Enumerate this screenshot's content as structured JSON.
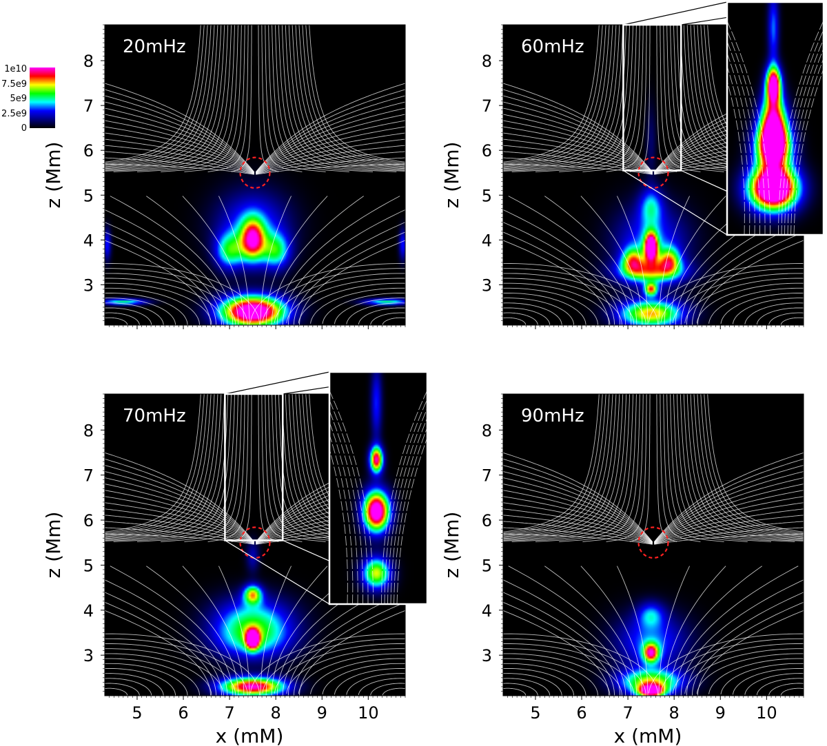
{
  "figure": {
    "colorbar": {
      "ticks": [
        "1e10",
        "7.5e9",
        "5e9",
        "2.5e9",
        "0"
      ],
      "colors": [
        "#000000",
        "#000080",
        "#0000ff",
        "#00ffff",
        "#00ff00",
        "#ffff00",
        "#ff0000",
        "#ff00ff"
      ]
    },
    "xlabel": "x (mM)",
    "ylabel": "z (Mm)",
    "xticks": [
      "5",
      "6",
      "7",
      "8",
      "9",
      "10"
    ],
    "yticks": [
      "3",
      "4",
      "5",
      "6",
      "7",
      "8"
    ]
  },
  "chart_data": [
    {
      "type": "heatmap",
      "title": "20mHz",
      "xlabel": "",
      "ylabel": "z (Mm)",
      "xlim": [
        4.3,
        10.8
      ],
      "ylim": [
        2.1,
        8.8
      ],
      "null_point": {
        "x": 7.55,
        "z": 5.5
      },
      "inset": false,
      "blobs": [
        {
          "x": 7.5,
          "z": 4.0,
          "sx": 0.18,
          "sz": 0.32,
          "a": 0.75
        },
        {
          "x": 7.5,
          "z": 4.3,
          "sx": 0.55,
          "sz": 0.55,
          "a": 0.35
        },
        {
          "x": 7.0,
          "z": 3.75,
          "sx": 0.22,
          "sz": 0.28,
          "a": 0.45
        },
        {
          "x": 8.0,
          "z": 3.75,
          "sx": 0.22,
          "sz": 0.28,
          "a": 0.45
        },
        {
          "x": 7.5,
          "z": 2.4,
          "sx": 0.5,
          "sz": 0.25,
          "a": 1.2
        },
        {
          "x": 4.7,
          "z": 2.62,
          "sx": 0.35,
          "sz": 0.05,
          "a": 0.5
        },
        {
          "x": 10.4,
          "z": 2.62,
          "sx": 0.35,
          "sz": 0.05,
          "a": 0.5
        },
        {
          "x": 4.35,
          "z": 3.9,
          "sx": 0.06,
          "sz": 0.25,
          "a": 0.3
        },
        {
          "x": 10.75,
          "z": 3.9,
          "sx": 0.06,
          "sz": 0.25,
          "a": 0.3
        }
      ]
    },
    {
      "type": "heatmap",
      "title": "60mHz",
      "xlabel": "",
      "ylabel": "z (Mm)",
      "xlim": [
        4.3,
        10.8
      ],
      "ylim": [
        2.1,
        8.8
      ],
      "null_point": {
        "x": 7.55,
        "z": 5.5
      },
      "inset": true,
      "blobs": [
        {
          "x": 7.5,
          "z": 3.85,
          "sx": 0.1,
          "sz": 0.22,
          "a": 1.0
        },
        {
          "x": 7.5,
          "z": 3.9,
          "sx": 0.55,
          "sz": 0.6,
          "a": 0.35
        },
        {
          "x": 7.1,
          "z": 3.55,
          "sx": 0.16,
          "sz": 0.2,
          "a": 0.5
        },
        {
          "x": 7.9,
          "z": 3.55,
          "sx": 0.16,
          "sz": 0.2,
          "a": 0.5
        },
        {
          "x": 7.5,
          "z": 3.3,
          "sx": 0.5,
          "sz": 0.18,
          "a": 0.55
        },
        {
          "x": 7.5,
          "z": 2.9,
          "sx": 0.1,
          "sz": 0.1,
          "a": 0.7
        },
        {
          "x": 7.5,
          "z": 2.35,
          "sx": 0.5,
          "sz": 0.22,
          "a": 0.75
        },
        {
          "x": 7.5,
          "z": 4.75,
          "sx": 0.18,
          "sz": 0.3,
          "a": 0.35
        },
        {
          "x": 7.5,
          "z": 6.2,
          "sx": 0.08,
          "sz": 0.6,
          "a": 0.12
        }
      ],
      "inset_blobs": [
        {
          "x": 7.5,
          "z": 7.2,
          "sx": 0.07,
          "sz": 0.25,
          "a": 1.1
        },
        {
          "x": 7.5,
          "z": 6.5,
          "sx": 0.12,
          "sz": 0.35,
          "a": 0.9
        },
        {
          "x": 7.5,
          "z": 6.0,
          "sx": 0.16,
          "sz": 0.3,
          "a": 1.1
        },
        {
          "x": 7.5,
          "z": 5.2,
          "sx": 0.22,
          "sz": 0.3,
          "a": 1.4
        },
        {
          "x": 7.5,
          "z": 8.3,
          "sx": 0.05,
          "sz": 0.5,
          "a": 0.35
        }
      ]
    },
    {
      "type": "heatmap",
      "title": "70mHz",
      "xlabel": "x (mM)",
      "ylabel": "z (Mm)",
      "xlim": [
        4.3,
        10.8
      ],
      "ylim": [
        2.1,
        8.8
      ],
      "null_point": {
        "x": 7.55,
        "z": 5.5
      },
      "inset": true,
      "blobs": [
        {
          "x": 7.5,
          "z": 4.35,
          "sx": 0.14,
          "sz": 0.15,
          "a": 0.65
        },
        {
          "x": 7.5,
          "z": 3.35,
          "sx": 0.1,
          "sz": 0.15,
          "a": 0.95
        },
        {
          "x": 7.5,
          "z": 3.4,
          "sx": 0.6,
          "sz": 0.35,
          "a": 0.5
        },
        {
          "x": 7.5,
          "z": 3.9,
          "sx": 0.6,
          "sz": 0.35,
          "a": 0.3
        },
        {
          "x": 7.5,
          "z": 2.3,
          "sx": 0.5,
          "sz": 0.15,
          "a": 1.0
        },
        {
          "x": 7.5,
          "z": 5.2,
          "sx": 0.1,
          "sz": 0.25,
          "a": 0.2
        }
      ],
      "inset_blobs": [
        {
          "x": 7.5,
          "z": 7.1,
          "sx": 0.06,
          "sz": 0.18,
          "a": 0.95
        },
        {
          "x": 7.5,
          "z": 6.1,
          "sx": 0.12,
          "sz": 0.28,
          "a": 1.15
        },
        {
          "x": 7.5,
          "z": 4.9,
          "sx": 0.13,
          "sz": 0.22,
          "a": 0.7
        },
        {
          "x": 7.5,
          "z": 8.2,
          "sx": 0.05,
          "sz": 0.5,
          "a": 0.3
        }
      ]
    },
    {
      "type": "heatmap",
      "title": "90mHz",
      "xlabel": "x (mM)",
      "ylabel": "z (Mm)",
      "xlim": [
        4.3,
        10.8
      ],
      "ylim": [
        2.1,
        8.8
      ],
      "null_point": {
        "x": 7.55,
        "z": 5.5
      },
      "inset": false,
      "blobs": [
        {
          "x": 7.5,
          "z": 3.05,
          "sx": 0.12,
          "sz": 0.15,
          "a": 0.75
        },
        {
          "x": 7.5,
          "z": 3.3,
          "sx": 0.55,
          "sz": 0.45,
          "a": 0.35
        },
        {
          "x": 7.5,
          "z": 3.9,
          "sx": 0.2,
          "sz": 0.2,
          "a": 0.3
        },
        {
          "x": 7.5,
          "z": 2.4,
          "sx": 0.5,
          "sz": 0.2,
          "a": 0.65
        },
        {
          "x": 7.5,
          "z": 2.2,
          "sx": 0.2,
          "sz": 0.1,
          "a": 0.9
        }
      ]
    }
  ]
}
